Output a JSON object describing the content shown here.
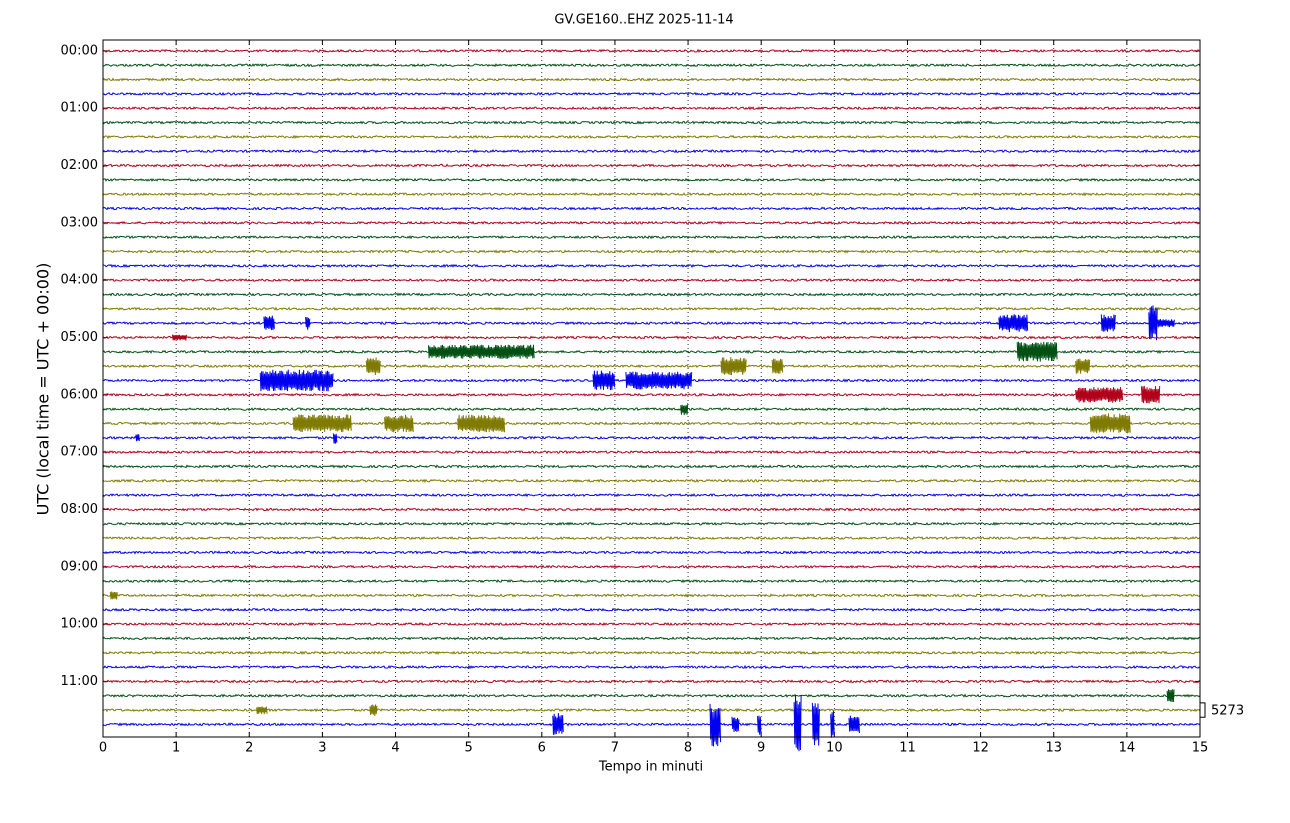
{
  "chart_data": {
    "type": "helicorder",
    "title": "GV.GE160..EHZ 2025-11-14",
    "xlabel": "Tempo in minuti",
    "ylabel": "UTC (local time = UTC + 00:00)",
    "xlim": [
      0,
      15
    ],
    "xticks": [
      0,
      1,
      2,
      3,
      4,
      5,
      6,
      7,
      8,
      9,
      10,
      11,
      12,
      13,
      14,
      15
    ],
    "ylim": [
      -0.19,
      11.97
    ],
    "yticks": [
      {
        "value": 0,
        "label": "00:00"
      },
      {
        "value": 1,
        "label": "01:00"
      },
      {
        "value": 2,
        "label": "02:00"
      },
      {
        "value": 3,
        "label": "03:00"
      },
      {
        "value": 4,
        "label": "04:00"
      },
      {
        "value": 5,
        "label": "05:00"
      },
      {
        "value": 6,
        "label": "06:00"
      },
      {
        "value": 7,
        "label": "07:00"
      },
      {
        "value": 8,
        "label": "08:00"
      },
      {
        "value": 9,
        "label": "09:00"
      },
      {
        "value": 10,
        "label": "10:00"
      },
      {
        "value": 11,
        "label": "11:00"
      }
    ],
    "row_interval_hours": 0.25,
    "colors": [
      "#b0001a",
      "#005014",
      "#7f7a00",
      "#0000f0"
    ],
    "grid": true,
    "scale": 5273,
    "noise_amplitude": 400,
    "events": [
      {
        "row": 4.75,
        "start": 2.2,
        "end": 2.35,
        "amplitude": 2900
      },
      {
        "row": 4.75,
        "start": 2.77,
        "end": 2.83,
        "amplitude": 2600
      },
      {
        "row": 4.75,
        "start": 12.25,
        "end": 12.65,
        "amplitude": 3300
      },
      {
        "row": 4.75,
        "start": 13.65,
        "end": 13.85,
        "amplitude": 3300
      },
      {
        "row": 4.75,
        "start": 14.3,
        "end": 14.42,
        "amplitude": 6600
      },
      {
        "row": 4.75,
        "start": 14.42,
        "end": 14.65,
        "amplitude": 1500
      },
      {
        "row": 5.0,
        "start": 0.95,
        "end": 1.15,
        "amplitude": 1100
      },
      {
        "row": 5.25,
        "start": 4.45,
        "end": 5.9,
        "amplitude": 2600
      },
      {
        "row": 5.25,
        "start": 12.5,
        "end": 13.05,
        "amplitude": 3700
      },
      {
        "row": 5.5,
        "start": 3.6,
        "end": 3.8,
        "amplitude": 3300
      },
      {
        "row": 5.5,
        "start": 8.45,
        "end": 8.8,
        "amplitude": 3300
      },
      {
        "row": 5.5,
        "start": 9.15,
        "end": 9.3,
        "amplitude": 2900
      },
      {
        "row": 5.5,
        "start": 13.3,
        "end": 13.5,
        "amplitude": 2900
      },
      {
        "row": 5.75,
        "start": 2.15,
        "end": 3.15,
        "amplitude": 4000
      },
      {
        "row": 5.75,
        "start": 6.7,
        "end": 7.0,
        "amplitude": 3700
      },
      {
        "row": 5.75,
        "start": 7.15,
        "end": 8.05,
        "amplitude": 3300
      },
      {
        "row": 6.0,
        "start": 13.3,
        "end": 13.95,
        "amplitude": 2900
      },
      {
        "row": 6.0,
        "start": 14.2,
        "end": 14.45,
        "amplitude": 3300
      },
      {
        "row": 6.25,
        "start": 7.9,
        "end": 8.0,
        "amplitude": 2200
      },
      {
        "row": 6.5,
        "start": 2.6,
        "end": 3.4,
        "amplitude": 3300
      },
      {
        "row": 6.5,
        "start": 3.85,
        "end": 4.25,
        "amplitude": 3300
      },
      {
        "row": 6.5,
        "start": 4.85,
        "end": 5.5,
        "amplitude": 3300
      },
      {
        "row": 6.5,
        "start": 13.5,
        "end": 14.05,
        "amplitude": 3700
      },
      {
        "row": 6.75,
        "start": 0.45,
        "end": 0.5,
        "amplitude": 1800
      },
      {
        "row": 6.75,
        "start": 3.15,
        "end": 3.2,
        "amplitude": 2200
      },
      {
        "row": 9.5,
        "start": 0.1,
        "end": 0.2,
        "amplitude": 1800
      },
      {
        "row": 11.25,
        "start": 14.55,
        "end": 14.65,
        "amplitude": 2600
      },
      {
        "row": 11.5,
        "start": 2.1,
        "end": 2.25,
        "amplitude": 1500
      },
      {
        "row": 11.5,
        "start": 3.65,
        "end": 3.75,
        "amplitude": 2200
      },
      {
        "row": 11.75,
        "start": 6.15,
        "end": 6.3,
        "amplitude": 4400
      },
      {
        "row": 11.75,
        "start": 8.3,
        "end": 8.45,
        "amplitude": 8100
      },
      {
        "row": 11.75,
        "start": 8.6,
        "end": 8.7,
        "amplitude": 2900
      },
      {
        "row": 11.75,
        "start": 8.95,
        "end": 9.0,
        "amplitude": 4400
      },
      {
        "row": 11.75,
        "start": 9.45,
        "end": 9.55,
        "amplitude": 11000
      },
      {
        "row": 11.75,
        "start": 9.7,
        "end": 9.8,
        "amplitude": 8100
      },
      {
        "row": 11.75,
        "start": 9.95,
        "end": 10.0,
        "amplitude": 5500
      },
      {
        "row": 11.75,
        "start": 10.2,
        "end": 10.35,
        "amplitude": 3300
      }
    ]
  }
}
